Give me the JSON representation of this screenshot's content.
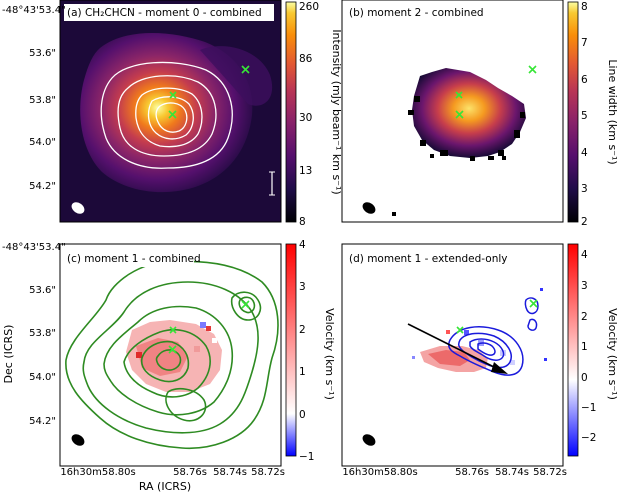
{
  "axes": {
    "dec_label": "Dec (ICRS)",
    "ra_label": "RA (ICRS)",
    "dec_ticks": [
      "-48°43'53.4\"",
      "53.6\"",
      "53.8\"",
      "54.0\"",
      "54.2\""
    ],
    "ra_ticks": [
      "16h30m58.80s",
      "58.76s",
      "58.74s",
      "58.72s"
    ]
  },
  "panels": [
    {
      "id": "a",
      "title": "(a) CH₂CHCN - moment 0 - combined",
      "scalebar": "500 au"
    },
    {
      "id": "b",
      "title": "(b) moment 2 - combined"
    },
    {
      "id": "c",
      "title": "(c) moment 1 - combined"
    },
    {
      "id": "d",
      "title": "(d) moment 1 - extended-only"
    }
  ],
  "colorbars": {
    "a": {
      "label": "Intensity (mJy beam⁻¹ km s⁻¹)",
      "ticks": [
        "260",
        "86",
        "30",
        "13",
        "8"
      ],
      "scale": "log",
      "colormap": "inferno"
    },
    "b": {
      "label": "Line width (km s⁻¹)",
      "ticks": [
        "8",
        "7",
        "6",
        "5",
        "4",
        "3",
        "2"
      ],
      "range": [
        2,
        8
      ],
      "colormap": "inferno"
    },
    "c": {
      "label": "Velocity (km s⁻¹)",
      "ticks": [
        "4",
        "3",
        "2",
        "1",
        "0",
        "−1"
      ],
      "range": [
        -1,
        4
      ],
      "colormap": "bwr"
    },
    "d": {
      "label": "Velocity (km s⁻¹)",
      "ticks": [
        "4",
        "3",
        "2",
        "1",
        "0",
        "−1",
        "−2"
      ],
      "range": [
        -2.5,
        4.5
      ],
      "colormap": "bwr"
    }
  },
  "colors": {
    "contour_white": "#ffffff",
    "contour_green": "#2e8b22",
    "contour_blue": "#1a1adc",
    "marker": "#37e537",
    "arrow": "#000000"
  },
  "markers": [
    "x-icon",
    "x-icon",
    "x-icon"
  ]
}
